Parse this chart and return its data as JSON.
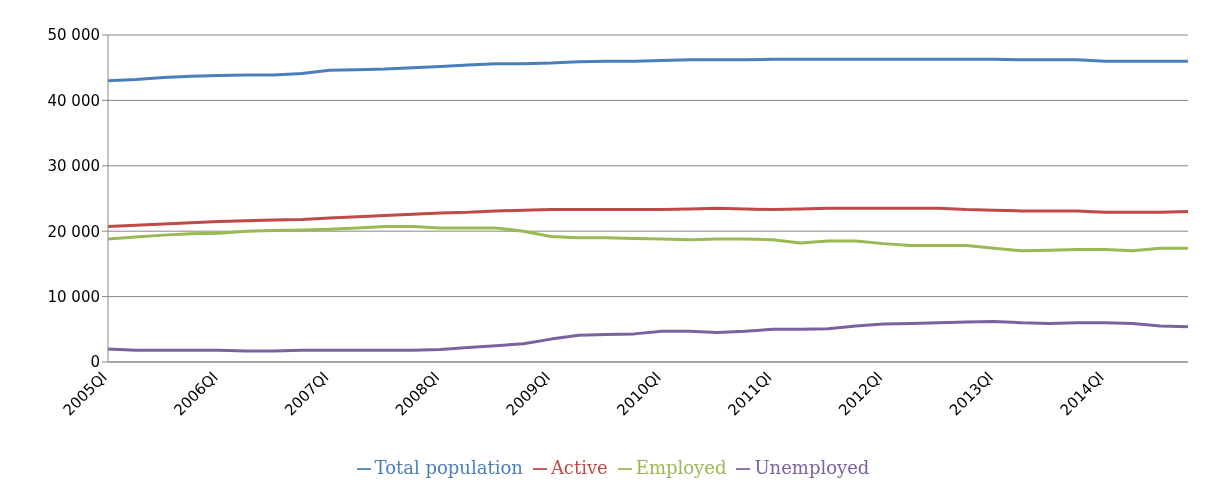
{
  "chart_data": {
    "type": "line",
    "categories": [
      "2005QI",
      null,
      null,
      null,
      "2006QI",
      null,
      null,
      null,
      "2007QI",
      null,
      null,
      null,
      "2008QI",
      null,
      null,
      null,
      "2009QI",
      null,
      null,
      null,
      "2010QI",
      null,
      null,
      null,
      "2011QI",
      null,
      null,
      null,
      "2012QI",
      null,
      null,
      null,
      "2013QI",
      null,
      null,
      null,
      "2014QI",
      null,
      null,
      null
    ],
    "series": [
      {
        "name": "Total population",
        "color": "#4a7ebb",
        "values": [
          43000,
          43200,
          43500,
          43700,
          43800,
          43900,
          43900,
          44100,
          44600,
          44700,
          44800,
          45000,
          45200,
          45400,
          45600,
          45600,
          45700,
          45900,
          46000,
          46000,
          46100,
          46200,
          46200,
          46200,
          46300,
          46300,
          46300,
          46300,
          46300,
          46300,
          46300,
          46300,
          46300,
          46200,
          46200,
          46200,
          46000,
          46000,
          46000,
          46000
        ]
      },
      {
        "name": "Active",
        "color": "#be4b48",
        "values": [
          20700,
          20900,
          21100,
          21300,
          21500,
          21600,
          21700,
          21800,
          22000,
          22200,
          22400,
          22600,
          22800,
          22900,
          23100,
          23200,
          23300,
          23300,
          23300,
          23300,
          23300,
          23400,
          23500,
          23400,
          23300,
          23400,
          23500,
          23500,
          23500,
          23500,
          23500,
          23300,
          23200,
          23100,
          23100,
          23100,
          22900,
          22900,
          22900,
          23000
        ]
      },
      {
        "name": "Employed",
        "color": "#98b954",
        "values": [
          18800,
          19100,
          19400,
          19600,
          19700,
          20000,
          20100,
          20200,
          20300,
          20500,
          20700,
          20700,
          20500,
          20500,
          20500,
          20000,
          19200,
          19000,
          19000,
          18900,
          18800,
          18700,
          18800,
          18800,
          18700,
          18200,
          18500,
          18500,
          18100,
          17800,
          17800,
          17800,
          17400,
          17000,
          17100,
          17200,
          17200,
          17000,
          17400,
          17400
        ]
      },
      {
        "name": "Unemployed",
        "color": "#7d60a0",
        "values": [
          2000,
          1800,
          1800,
          1800,
          1800,
          1700,
          1700,
          1800,
          1800,
          1800,
          1800,
          1800,
          1900,
          2200,
          2500,
          2800,
          3500,
          4100,
          4200,
          4300,
          4700,
          4700,
          4500,
          4700,
          5000,
          5000,
          5100,
          5500,
          5800,
          5900,
          6000,
          6100,
          6200,
          6000,
          5900,
          6000,
          6000,
          5900,
          5500,
          5400
        ]
      }
    ],
    "ylim": [
      0,
      50000
    ],
    "yticks": [
      0,
      {
        "value": 10000,
        "label": "10 000"
      },
      {
        "value": 20000,
        "label": "20 000"
      },
      {
        "value": 30000,
        "label": "30 000"
      },
      {
        "value": 40000,
        "label": "40 000"
      },
      {
        "value": 50000,
        "label": "50 000"
      }
    ],
    "grid": "y",
    "legend": "bottom",
    "marker": "none",
    "line_style": "solid"
  }
}
